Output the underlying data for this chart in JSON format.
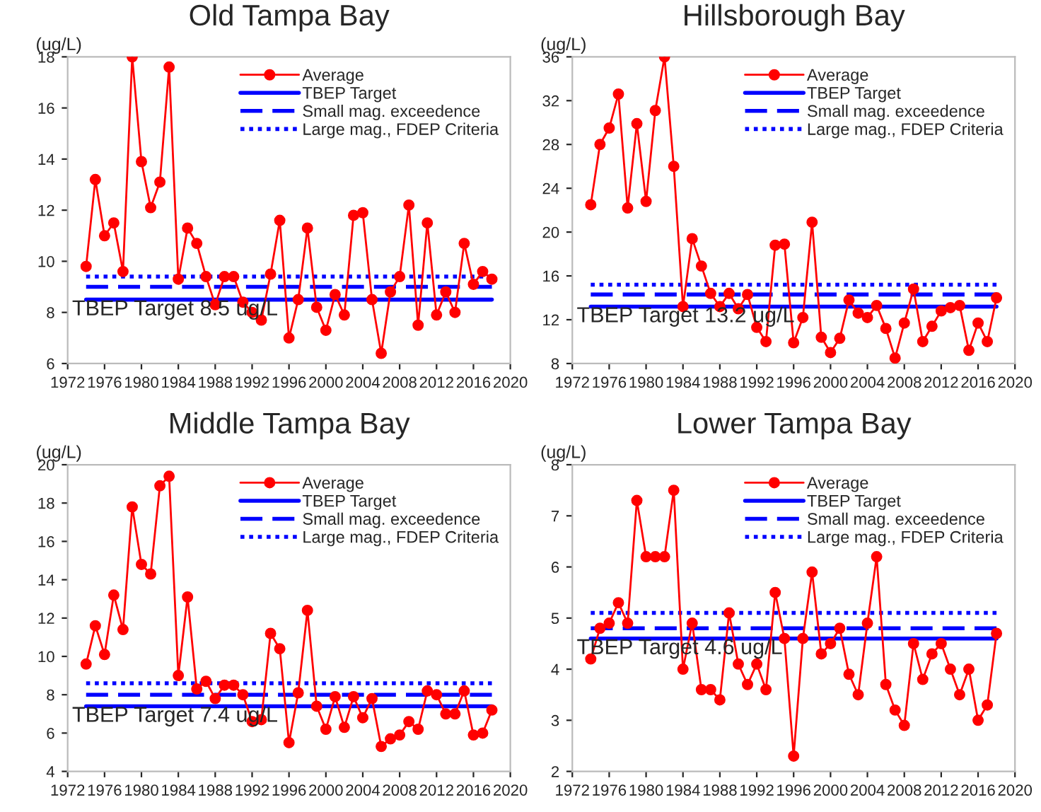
{
  "chart_data": [
    {
      "type": "line",
      "title": "Old Tampa Bay",
      "ylabel": "(ug/L)",
      "xlim": [
        1972,
        2020
      ],
      "xticks": [
        1972,
        1976,
        1980,
        1984,
        1988,
        1992,
        1996,
        2000,
        2004,
        2008,
        2012,
        2016,
        2020
      ],
      "ylim": [
        6,
        18
      ],
      "yticks": [
        6,
        8,
        10,
        12,
        14,
        16,
        18
      ],
      "grid": false,
      "legend": "top right",
      "annotations": [
        "TBEP Target 8.5 ug/L"
      ],
      "series": [
        {
          "name": "Average",
          "color": "#ff0000",
          "marker": "circle",
          "line_style": "solid",
          "x": [
            1974,
            1975,
            1976,
            1977,
            1978,
            1979,
            1980,
            1981,
            1982,
            1983,
            1984,
            1985,
            1986,
            1987,
            1988,
            1989,
            1990,
            1991,
            1992,
            1993,
            1994,
            1995,
            1996,
            1997,
            1998,
            1999,
            2000,
            2001,
            2002,
            2003,
            2004,
            2005,
            2006,
            2007,
            2008,
            2009,
            2010,
            2011,
            2012,
            2013,
            2014,
            2015,
            2016,
            2017,
            2018
          ],
          "values": [
            9.8,
            13.2,
            11.0,
            11.5,
            9.6,
            18.0,
            13.9,
            12.1,
            13.1,
            17.6,
            9.3,
            11.3,
            10.7,
            9.4,
            8.3,
            9.4,
            9.4,
            8.4,
            8.0,
            7.7,
            9.5,
            11.6,
            7.0,
            8.5,
            11.3,
            8.2,
            7.3,
            8.7,
            7.9,
            11.8,
            11.9,
            8.5,
            6.4,
            8.8,
            9.4,
            12.2,
            7.5,
            11.5,
            7.9,
            8.8,
            8.0,
            10.7,
            9.1,
            9.6,
            9.3
          ]
        },
        {
          "name": "TBEP Target",
          "color": "#0000ff",
          "marker": "none",
          "line_style": "solid",
          "x": [
            1974,
            2018
          ],
          "values": [
            8.5,
            8.5
          ]
        },
        {
          "name": "Small mag. exceedence",
          "color": "#0000ff",
          "marker": "none",
          "line_style": "dashed",
          "x": [
            1974,
            2018
          ],
          "values": [
            9.0,
            9.0
          ]
        },
        {
          "name": "Large mag., FDEP Criteria",
          "color": "#0000ff",
          "marker": "none",
          "line_style": "dotted",
          "x": [
            1974,
            2018
          ],
          "values": [
            9.4,
            9.4
          ]
        }
      ]
    },
    {
      "type": "line",
      "title": "Hillsborough Bay",
      "ylabel": "(ug/L)",
      "xlim": [
        1972,
        2020
      ],
      "xticks": [
        1972,
        1976,
        1980,
        1984,
        1988,
        1992,
        1996,
        2000,
        2004,
        2008,
        2012,
        2016,
        2020
      ],
      "ylim": [
        8,
        36
      ],
      "yticks": [
        8,
        12,
        16,
        20,
        24,
        28,
        32,
        36
      ],
      "grid": false,
      "legend": "top right",
      "annotations": [
        "TBEP Target 13.2 ug/L"
      ],
      "series": [
        {
          "name": "Average",
          "color": "#ff0000",
          "marker": "circle",
          "line_style": "solid",
          "x": [
            1974,
            1975,
            1976,
            1977,
            1978,
            1979,
            1980,
            1981,
            1982,
            1983,
            1984,
            1985,
            1986,
            1987,
            1988,
            1989,
            1990,
            1991,
            1992,
            1993,
            1994,
            1995,
            1996,
            1997,
            1998,
            1999,
            2000,
            2001,
            2002,
            2003,
            2004,
            2005,
            2006,
            2007,
            2008,
            2009,
            2010,
            2011,
            2012,
            2013,
            2014,
            2015,
            2016,
            2017,
            2018
          ],
          "values": [
            22.5,
            28.0,
            29.5,
            32.6,
            22.2,
            29.9,
            22.8,
            31.1,
            36.0,
            26.0,
            13.2,
            19.4,
            16.9,
            14.4,
            13.2,
            14.4,
            13.0,
            14.3,
            11.3,
            10.0,
            18.8,
            18.9,
            9.9,
            12.2,
            20.9,
            10.4,
            9.0,
            10.3,
            13.8,
            12.6,
            12.2,
            13.3,
            11.2,
            8.5,
            11.7,
            14.8,
            10.0,
            11.4,
            12.8,
            13.1,
            13.3,
            9.2,
            11.7,
            10.0,
            14.0
          ]
        },
        {
          "name": "TBEP Target",
          "color": "#0000ff",
          "marker": "none",
          "line_style": "solid",
          "x": [
            1974,
            2018
          ],
          "values": [
            13.2,
            13.2
          ]
        },
        {
          "name": "Small mag. exceedence",
          "color": "#0000ff",
          "marker": "none",
          "line_style": "dashed",
          "x": [
            1974,
            2018
          ],
          "values": [
            14.3,
            14.3
          ]
        },
        {
          "name": "Large mag., FDEP Criteria",
          "color": "#0000ff",
          "marker": "none",
          "line_style": "dotted",
          "x": [
            1974,
            2018
          ],
          "values": [
            15.2,
            15.2
          ]
        }
      ]
    },
    {
      "type": "line",
      "title": "Middle Tampa Bay",
      "ylabel": "(ug/L)",
      "xlim": [
        1972,
        2020
      ],
      "xticks": [
        1972,
        1976,
        1980,
        1984,
        1988,
        1992,
        1996,
        2000,
        2004,
        2008,
        2012,
        2016,
        2020
      ],
      "ylim": [
        4,
        20
      ],
      "yticks": [
        4,
        6,
        8,
        10,
        12,
        14,
        16,
        18,
        20
      ],
      "grid": false,
      "legend": "top right",
      "annotations": [
        "TBEP Target 7.4 ug/L"
      ],
      "series": [
        {
          "name": "Average",
          "color": "#ff0000",
          "marker": "circle",
          "line_style": "solid",
          "x": [
            1974,
            1975,
            1976,
            1977,
            1978,
            1979,
            1980,
            1981,
            1982,
            1983,
            1984,
            1985,
            1986,
            1987,
            1988,
            1989,
            1990,
            1991,
            1992,
            1993,
            1994,
            1995,
            1996,
            1997,
            1998,
            1999,
            2000,
            2001,
            2002,
            2003,
            2004,
            2005,
            2006,
            2007,
            2008,
            2009,
            2010,
            2011,
            2012,
            2013,
            2014,
            2015,
            2016,
            2017,
            2018
          ],
          "values": [
            9.6,
            11.6,
            10.1,
            13.2,
            11.4,
            17.8,
            14.8,
            14.3,
            18.9,
            19.4,
            9.0,
            13.1,
            8.3,
            8.7,
            7.8,
            8.5,
            8.5,
            8.0,
            6.6,
            6.7,
            11.2,
            10.4,
            5.5,
            8.1,
            12.4,
            7.4,
            6.2,
            7.9,
            6.3,
            7.9,
            6.8,
            7.8,
            5.3,
            5.7,
            5.9,
            6.6,
            6.2,
            8.2,
            8.0,
            7.0,
            7.0,
            8.2,
            5.9,
            6.0,
            7.2
          ]
        },
        {
          "name": "TBEP Target",
          "color": "#0000ff",
          "marker": "none",
          "line_style": "solid",
          "x": [
            1974,
            2018
          ],
          "values": [
            7.4,
            7.4
          ]
        },
        {
          "name": "Small mag. exceedence",
          "color": "#0000ff",
          "marker": "none",
          "line_style": "dashed",
          "x": [
            1974,
            2018
          ],
          "values": [
            8.0,
            8.0
          ]
        },
        {
          "name": "Large mag., FDEP Criteria",
          "color": "#0000ff",
          "marker": "none",
          "line_style": "dotted",
          "x": [
            1974,
            2018
          ],
          "values": [
            8.6,
            8.6
          ]
        }
      ]
    },
    {
      "type": "line",
      "title": "Lower Tampa Bay",
      "ylabel": "(ug/L)",
      "xlim": [
        1972,
        2020
      ],
      "xticks": [
        1972,
        1976,
        1980,
        1984,
        1988,
        1992,
        1996,
        2000,
        2004,
        2008,
        2012,
        2016,
        2020
      ],
      "ylim": [
        2,
        8
      ],
      "yticks": [
        2,
        3,
        4,
        5,
        6,
        7,
        8
      ],
      "grid": false,
      "legend": "top right",
      "annotations": [
        "TBEP Target 4.6 ug/L"
      ],
      "series": [
        {
          "name": "Average",
          "color": "#ff0000",
          "marker": "circle",
          "line_style": "solid",
          "x": [
            1974,
            1975,
            1976,
            1977,
            1978,
            1979,
            1980,
            1981,
            1982,
            1983,
            1984,
            1985,
            1986,
            1987,
            1988,
            1989,
            1990,
            1991,
            1992,
            1993,
            1994,
            1995,
            1996,
            1997,
            1998,
            1999,
            2000,
            2001,
            2002,
            2003,
            2004,
            2005,
            2006,
            2007,
            2008,
            2009,
            2010,
            2011,
            2012,
            2013,
            2014,
            2015,
            2016,
            2017,
            2018
          ],
          "values": [
            4.2,
            4.8,
            4.9,
            5.3,
            4.9,
            7.3,
            6.2,
            6.2,
            6.2,
            7.5,
            4.0,
            4.9,
            3.6,
            3.6,
            3.4,
            5.1,
            4.1,
            3.7,
            4.1,
            3.6,
            5.5,
            4.6,
            2.3,
            4.6,
            5.9,
            4.3,
            4.5,
            4.8,
            3.9,
            3.5,
            4.9,
            6.2,
            3.7,
            3.2,
            2.9,
            4.5,
            3.8,
            4.3,
            4.5,
            4.0,
            3.5,
            4.0,
            3.0,
            3.3,
            4.7
          ]
        },
        {
          "name": "TBEP Target",
          "color": "#0000ff",
          "marker": "none",
          "line_style": "solid",
          "x": [
            1974,
            2018
          ],
          "values": [
            4.6,
            4.6
          ]
        },
        {
          "name": "Small mag. exceedence",
          "color": "#0000ff",
          "marker": "none",
          "line_style": "dashed",
          "x": [
            1974,
            2018
          ],
          "values": [
            4.8,
            4.8
          ]
        },
        {
          "name": "Large mag., FDEP Criteria",
          "color": "#0000ff",
          "marker": "none",
          "line_style": "dotted",
          "x": [
            1974,
            2018
          ],
          "values": [
            5.1,
            5.1
          ]
        }
      ]
    }
  ]
}
